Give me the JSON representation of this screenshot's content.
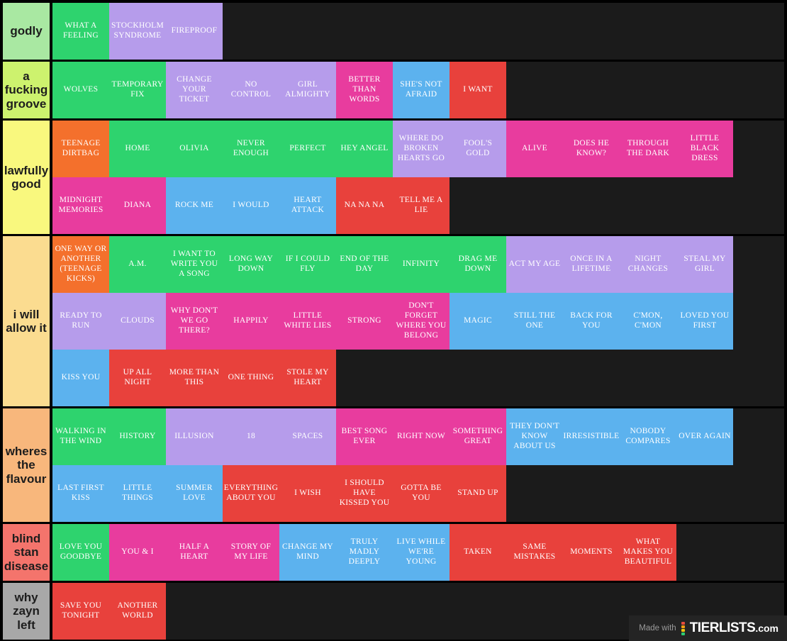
{
  "page": {
    "background": "#1b1b1b",
    "gap_color": "#000000"
  },
  "palette": {
    "green": "#2ed36e",
    "purple": "#b69ceb",
    "pink": "#e83c9e",
    "blue": "#5cb2ee",
    "red": "#e8413c",
    "orange": "#f4702c"
  },
  "tiers": [
    {
      "label": "godly",
      "label_color": "#a9e8a2",
      "items": [
        {
          "text": "WHAT A FEELING",
          "color": "green"
        },
        {
          "text": "STOCKHOLM SYNDROME",
          "color": "purple"
        },
        {
          "text": "FIREPROOF",
          "color": "purple"
        }
      ]
    },
    {
      "label": "a fucking groove",
      "label_color": "#cdf26e",
      "items": [
        {
          "text": "WOLVES",
          "color": "green"
        },
        {
          "text": "TEMPORARY FIX",
          "color": "green"
        },
        {
          "text": "CHANGE YOUR TICKET",
          "color": "purple"
        },
        {
          "text": "NO CONTROL",
          "color": "purple"
        },
        {
          "text": "GIRL ALMIGHTY",
          "color": "purple"
        },
        {
          "text": "BETTER THAN WORDS",
          "color": "pink"
        },
        {
          "text": "SHE'S NOT AFRAID",
          "color": "blue"
        },
        {
          "text": "I WANT",
          "color": "red"
        }
      ]
    },
    {
      "label": "lawfully good",
      "label_color": "#f9f87e",
      "items": [
        {
          "text": "TEENAGE DIRTBAG",
          "color": "orange"
        },
        {
          "text": "HOME",
          "color": "green"
        },
        {
          "text": "OLIVIA",
          "color": "green"
        },
        {
          "text": "NEVER ENOUGH",
          "color": "green"
        },
        {
          "text": "PERFECT",
          "color": "green"
        },
        {
          "text": "HEY ANGEL",
          "color": "green"
        },
        {
          "text": "WHERE DO BROKEN HEARTS GO",
          "color": "purple"
        },
        {
          "text": "FOOL'S GOLD",
          "color": "purple"
        },
        {
          "text": "ALIVE",
          "color": "pink"
        },
        {
          "text": "DOES HE KNOW?",
          "color": "pink"
        },
        {
          "text": "THROUGH THE DARK",
          "color": "pink"
        },
        {
          "text": "LITTLE BLACK DRESS",
          "color": "pink"
        },
        {
          "text": "MIDNIGHT MEMORIES",
          "color": "pink"
        },
        {
          "text": "DIANA",
          "color": "pink"
        },
        {
          "text": "ROCK ME",
          "color": "blue"
        },
        {
          "text": "I WOULD",
          "color": "blue"
        },
        {
          "text": "HEART ATTACK",
          "color": "blue"
        },
        {
          "text": "NA NA NA",
          "color": "red"
        },
        {
          "text": "TELL ME A LIE",
          "color": "red"
        }
      ]
    },
    {
      "label": "i will allow it",
      "label_color": "#fbdc90",
      "items": [
        {
          "text": "ONE WAY OR ANOTHER (TEENAGE KICKS)",
          "color": "orange"
        },
        {
          "text": "A.M.",
          "color": "green"
        },
        {
          "text": "I WANT TO WRITE YOU A SONG",
          "color": "green"
        },
        {
          "text": "LONG WAY DOWN",
          "color": "green"
        },
        {
          "text": "IF I COULD FLY",
          "color": "green"
        },
        {
          "text": "END OF THE DAY",
          "color": "green"
        },
        {
          "text": "INFINITY",
          "color": "green"
        },
        {
          "text": "DRAG ME DOWN",
          "color": "green"
        },
        {
          "text": "ACT MY AGE",
          "color": "purple"
        },
        {
          "text": "ONCE IN A LIFETIME",
          "color": "purple"
        },
        {
          "text": "NIGHT CHANGES",
          "color": "purple"
        },
        {
          "text": "STEAL MY GIRL",
          "color": "purple"
        },
        {
          "text": "READY TO RUN",
          "color": "purple"
        },
        {
          "text": "CLOUDS",
          "color": "purple"
        },
        {
          "text": "WHY DON'T WE GO THERE?",
          "color": "pink"
        },
        {
          "text": "HAPPILY",
          "color": "pink"
        },
        {
          "text": "LITTLE WHITE LIES",
          "color": "pink"
        },
        {
          "text": "STRONG",
          "color": "pink"
        },
        {
          "text": "DON'T FORGET WHERE YOU BELONG",
          "color": "pink"
        },
        {
          "text": "MAGIC",
          "color": "blue"
        },
        {
          "text": "STILL THE ONE",
          "color": "blue"
        },
        {
          "text": "BACK FOR YOU",
          "color": "blue"
        },
        {
          "text": "C'MON, C'MON",
          "color": "blue"
        },
        {
          "text": "LOVED YOU FIRST",
          "color": "blue"
        },
        {
          "text": "KISS YOU",
          "color": "blue"
        },
        {
          "text": "UP ALL NIGHT",
          "color": "red"
        },
        {
          "text": "MORE THAN THIS",
          "color": "red"
        },
        {
          "text": "ONE THING",
          "color": "red"
        },
        {
          "text": "STOLE MY HEART",
          "color": "red"
        }
      ]
    },
    {
      "label": "wheres the flavour",
      "label_color": "#f8b77c",
      "items": [
        {
          "text": "WALKING IN THE WIND",
          "color": "green"
        },
        {
          "text": "HISTORY",
          "color": "green"
        },
        {
          "text": "ILLUSION",
          "color": "purple"
        },
        {
          "text": "18",
          "color": "purple"
        },
        {
          "text": "SPACES",
          "color": "purple"
        },
        {
          "text": "BEST SONG EVER",
          "color": "pink"
        },
        {
          "text": "RIGHT NOW",
          "color": "pink"
        },
        {
          "text": "SOMETHING GREAT",
          "color": "pink"
        },
        {
          "text": "THEY DON'T KNOW ABOUT US",
          "color": "blue"
        },
        {
          "text": "IRRESISTIBLE",
          "color": "blue"
        },
        {
          "text": "NOBODY COMPARES",
          "color": "blue"
        },
        {
          "text": "OVER AGAIN",
          "color": "blue"
        },
        {
          "text": "LAST FIRST KISS",
          "color": "blue"
        },
        {
          "text": "LITTLE THINGS",
          "color": "blue"
        },
        {
          "text": "SUMMER LOVE",
          "color": "blue"
        },
        {
          "text": "EVERYTHING ABOUT YOU",
          "color": "red"
        },
        {
          "text": "I WISH",
          "color": "red"
        },
        {
          "text": "I SHOULD HAVE KISSED YOU",
          "color": "red"
        },
        {
          "text": "GOTTA BE YOU",
          "color": "red"
        },
        {
          "text": "STAND UP",
          "color": "red"
        }
      ]
    },
    {
      "label": "blind stan disease",
      "label_color": "#f4746c",
      "items": [
        {
          "text": "LOVE YOU GOODBYE",
          "color": "green"
        },
        {
          "text": "YOU & I",
          "color": "pink"
        },
        {
          "text": "HALF A HEART",
          "color": "pink"
        },
        {
          "text": "STORY OF MY LIFE",
          "color": "pink"
        },
        {
          "text": "CHANGE MY MIND",
          "color": "blue"
        },
        {
          "text": "TRULY MADLY DEEPLY",
          "color": "blue"
        },
        {
          "text": "LIVE WHILE WE'RE YOUNG",
          "color": "blue"
        },
        {
          "text": "TAKEN",
          "color": "red"
        },
        {
          "text": "SAME MISTAKES",
          "color": "red"
        },
        {
          "text": "MOMENTS",
          "color": "red"
        },
        {
          "text": "WHAT MAKES YOU BEAUTIFUL",
          "color": "red"
        }
      ]
    },
    {
      "label": "why zayn left",
      "label_color": "#a8a8a8",
      "items": [
        {
          "text": "SAVE YOU TONIGHT",
          "color": "red"
        },
        {
          "text": "ANOTHER WORLD",
          "color": "red"
        }
      ]
    }
  ],
  "watermark": {
    "made_with": "Made with",
    "brand": "TIERLISTS",
    "domain": ".com",
    "icon_colors": [
      "#e74c3c",
      "#f39c12",
      "#f1c40f",
      "#2ecc71"
    ]
  }
}
